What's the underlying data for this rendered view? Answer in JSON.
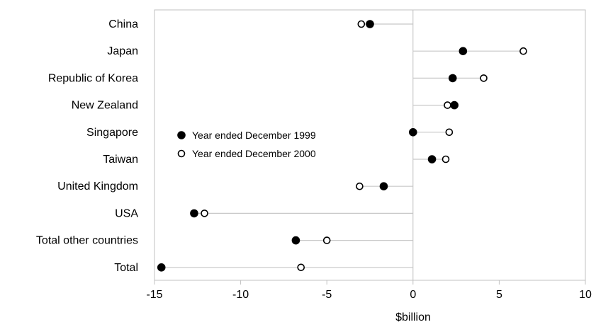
{
  "chart_data": {
    "type": "dot-range",
    "title": "",
    "xlabel": "$billion",
    "ylabel": "",
    "xlim": [
      -15,
      10
    ],
    "xticks": [
      -15,
      -10,
      -5,
      0,
      5,
      10
    ],
    "tick_labels": [
      "-15",
      "-10",
      "-5",
      "0",
      "5",
      "10"
    ],
    "grid": false,
    "legend_position": "left-middle",
    "categories": [
      "China",
      "Japan",
      "Republic of Korea",
      "New Zealand",
      "Singapore",
      "Taiwan",
      "United Kingdom",
      "USA",
      "Total other countries",
      "Total"
    ],
    "series": [
      {
        "name": "Year ended December 1999",
        "marker": "filled",
        "color": "#000000",
        "values": [
          -2.5,
          2.9,
          2.3,
          2.4,
          0.0,
          1.1,
          -1.7,
          -12.7,
          -6.8,
          -14.6
        ]
      },
      {
        "name": "Year ended December 2000",
        "marker": "open",
        "color": "#000000",
        "values": [
          -3.0,
          6.4,
          4.1,
          2.0,
          2.1,
          1.9,
          -3.1,
          -12.1,
          -5.0,
          -6.5
        ]
      }
    ],
    "colors": {
      "range_line": "#c8c8c8",
      "zero_line": "#c0c0c0",
      "frame": "#c0c0c0"
    }
  }
}
